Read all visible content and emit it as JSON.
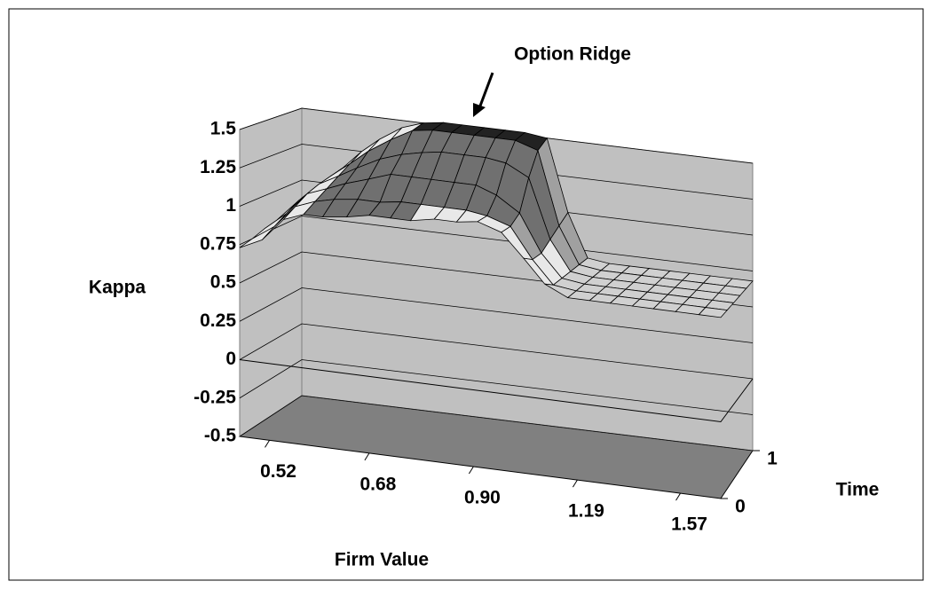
{
  "chart_data": {
    "type": "surface",
    "annotation": "Option Ridge",
    "xlabel": "Firm Value",
    "ylabel": "Kappa",
    "tlabel": "Time",
    "xscale": "log",
    "xlim": [
      0.48,
      1.75
    ],
    "xticks": [
      0.52,
      0.68,
      {
        "value": 0.9,
        "label": "0.90"
      },
      1.19,
      1.57
    ],
    "tlim": [
      0,
      1
    ],
    "tticks": [
      0,
      1
    ],
    "zlim": [
      -0.5,
      1.5
    ],
    "zticks": [
      1.5,
      1.25,
      1,
      0.75,
      0.5,
      0.25,
      0,
      -0.25,
      -0.5
    ],
    "x": [
      0.48,
      0.51,
      0.54,
      0.57,
      0.6,
      0.64,
      0.68,
      0.72,
      0.76,
      0.81,
      0.86,
      0.91,
      0.97,
      1.03,
      1.09,
      1.16,
      1.23,
      1.3,
      1.38,
      1.46,
      1.55,
      1.65,
      1.75
    ],
    "time": [
      0,
      0.2,
      0.4,
      0.6,
      0.8,
      1
    ],
    "z": [
      [
        0.73,
        0.8,
        0.95,
        1.0,
        1.0,
        1.02,
        1.05,
        1.05,
        1.05,
        1.08,
        1.08,
        1.1,
        1.05,
        0.9,
        0.75,
        0.68,
        0.68,
        0.68,
        0.68,
        0.68,
        0.68,
        0.68,
        0.68
      ],
      [
        0.75,
        0.85,
        1.0,
        1.05,
        1.08,
        1.1,
        1.1,
        1.12,
        1.12,
        1.12,
        1.12,
        1.1,
        1.05,
        0.85,
        0.7,
        0.68,
        0.68,
        0.68,
        0.68,
        0.68,
        0.68,
        0.68,
        0.68
      ],
      [
        0.78,
        0.9,
        1.05,
        1.1,
        1.15,
        1.2,
        1.25,
        1.25,
        1.25,
        1.25,
        1.25,
        1.2,
        1.1,
        0.85,
        0.7,
        0.68,
        0.68,
        0.68,
        0.68,
        0.68,
        0.68,
        0.68,
        0.68
      ],
      [
        0.8,
        0.95,
        1.08,
        1.15,
        1.22,
        1.3,
        1.35,
        1.38,
        1.4,
        1.4,
        1.4,
        1.38,
        1.3,
        0.9,
        0.7,
        0.68,
        0.68,
        0.68,
        0.68,
        0.68,
        0.68,
        0.68,
        0.68
      ],
      [
        0.82,
        0.98,
        1.1,
        1.2,
        1.3,
        1.4,
        1.48,
        1.5,
        1.5,
        1.5,
        1.5,
        1.5,
        1.45,
        0.95,
        0.7,
        0.68,
        0.68,
        0.68,
        0.68,
        0.68,
        0.68,
        0.68,
        0.68
      ],
      [
        0.85,
        1.0,
        1.12,
        1.25,
        1.35,
        1.45,
        1.5,
        1.52,
        1.52,
        1.52,
        1.52,
        1.52,
        1.5,
        1.0,
        0.7,
        0.68,
        0.68,
        0.68,
        0.68,
        0.68,
        0.68,
        0.68,
        0.68
      ]
    ]
  }
}
